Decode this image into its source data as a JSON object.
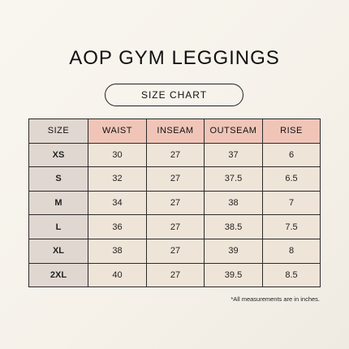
{
  "title": "AOP GYM LEGGINGS",
  "subtitle": "SIZE CHART",
  "table": {
    "headers": [
      "SIZE",
      "WAIST",
      "INSEAM",
      "OUTSEAM",
      "RISE"
    ],
    "rows": [
      [
        "XS",
        "30",
        "27",
        "37",
        "6"
      ],
      [
        "S",
        "32",
        "27",
        "37.5",
        "6.5"
      ],
      [
        "M",
        "34",
        "27",
        "38",
        "7"
      ],
      [
        "L",
        "36",
        "27",
        "38.5",
        "7.5"
      ],
      [
        "XL",
        "38",
        "27",
        "39",
        "8"
      ],
      [
        "2XL",
        "40",
        "27",
        "39.5",
        "8.5"
      ]
    ]
  },
  "footnote": "*All measurements are in inches.",
  "colors": {
    "header_accent": "#f0c5b8",
    "size_column": "#e1d7d1",
    "cell_background": "#efe4d8",
    "page_background": "#f7f3ec"
  }
}
